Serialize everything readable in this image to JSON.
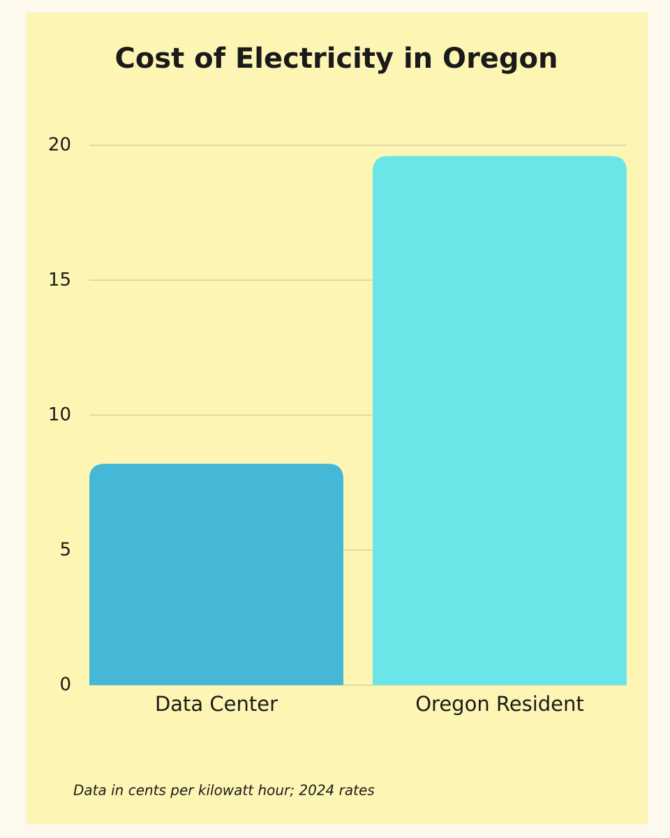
{
  "chart_data": {
    "type": "bar",
    "title": "Cost of Electricity in Oregon",
    "categories": [
      "Data Center",
      "Oregon Resident"
    ],
    "values": [
      8.2,
      19.6
    ],
    "colors": [
      "#44b8d6",
      "#6ce5e8"
    ],
    "ylim": [
      0,
      20
    ],
    "yticks": [
      0,
      5,
      10,
      15,
      20
    ],
    "grid": true,
    "footnote": "Data in cents per kilowatt hour; 2024 rates"
  }
}
